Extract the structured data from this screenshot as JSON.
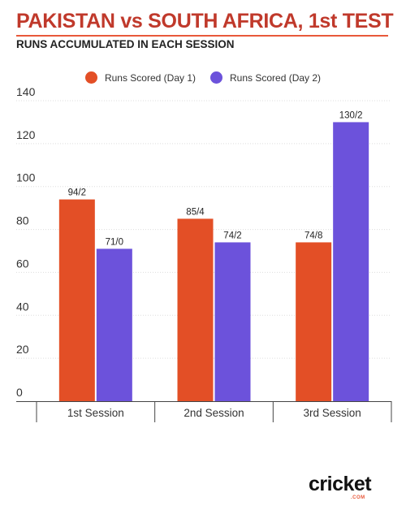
{
  "header": {
    "title": "PAKISTAN vs SOUTH AFRICA, 1st TEST",
    "subtitle": "RUNS ACCUMULATED IN EACH SESSION"
  },
  "logo": {
    "word": "cricket",
    "suffix": ".COM"
  },
  "chart_data": {
    "type": "bar",
    "title": "PAKISTAN vs SOUTH AFRICA, 1st TEST",
    "subtitle": "RUNS ACCUMULATED IN EACH SESSION",
    "categories": [
      "1st Session",
      "2nd Session",
      "3rd Session"
    ],
    "series": [
      {
        "name": "Runs Scored (Day 1)",
        "color": "#e34f26",
        "values": [
          94,
          85,
          74
        ],
        "labels": [
          "94/2",
          "85/4",
          "74/8"
        ]
      },
      {
        "name": "Runs Scored (Day 2)",
        "color": "#6c52db",
        "values": [
          71,
          74,
          130
        ],
        "labels": [
          "71/0",
          "74/2",
          "130/2"
        ]
      }
    ],
    "ylim": [
      0,
      140
    ],
    "yticks": [
      0,
      20,
      40,
      60,
      80,
      100,
      120,
      140
    ],
    "grid": true,
    "legend": "top-center",
    "xlabel": "",
    "ylabel": ""
  }
}
